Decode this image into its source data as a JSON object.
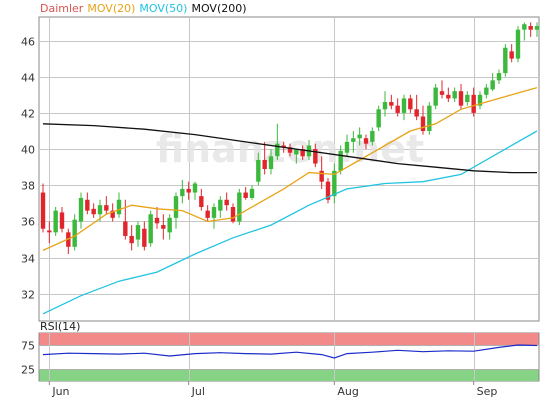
{
  "chart_data": [
    {
      "type": "candlestick",
      "legend": [
        {
          "label": "Daimler",
          "color": "#d9534f"
        },
        {
          "label": "MOV(20)",
          "color": "#e8a318"
        },
        {
          "label": "MOV(50)",
          "color": "#22c4e0"
        },
        {
          "label": "MOV(200)",
          "color": "#111111"
        }
      ],
      "y_ticks": [
        32,
        34,
        36,
        38,
        40,
        42,
        44,
        46
      ],
      "ylim": [
        30.5,
        47.3
      ],
      "x_labels": [
        {
          "label": "Jun",
          "i": 1
        },
        {
          "label": "Jul",
          "i": 23
        },
        {
          "label": "Aug",
          "i": 46
        },
        {
          "label": "Sep",
          "i": 68
        }
      ],
      "n_sessions": 79,
      "ohlc": [
        [
          37.6,
          38.1,
          35.4,
          35.6
        ],
        [
          35.5,
          36.0,
          34.8,
          35.4
        ],
        [
          35.4,
          36.8,
          35.2,
          36.6
        ],
        [
          36.5,
          36.8,
          35.4,
          35.6
        ],
        [
          35.4,
          35.6,
          34.2,
          34.6
        ],
        [
          34.6,
          36.4,
          34.4,
          36.1
        ],
        [
          36.0,
          37.6,
          35.6,
          37.3
        ],
        [
          37.2,
          37.6,
          36.4,
          36.6
        ],
        [
          36.7,
          37.0,
          36.2,
          36.4
        ],
        [
          36.4,
          37.2,
          36.0,
          36.9
        ],
        [
          36.9,
          37.4,
          36.4,
          36.6
        ],
        [
          36.6,
          37.0,
          36.0,
          36.2
        ],
        [
          36.4,
          37.6,
          36.2,
          37.2
        ],
        [
          36.0,
          37.2,
          35.0,
          35.2
        ],
        [
          35.2,
          35.8,
          34.4,
          34.8
        ],
        [
          35.0,
          36.0,
          34.6,
          35.8
        ],
        [
          35.6,
          36.0,
          34.4,
          34.6
        ],
        [
          34.8,
          36.6,
          34.6,
          36.4
        ],
        [
          36.2,
          36.8,
          35.6,
          35.9
        ],
        [
          35.8,
          36.4,
          35.0,
          35.6
        ],
        [
          35.4,
          36.4,
          35.0,
          36.2
        ],
        [
          36.2,
          37.6,
          35.6,
          37.4
        ],
        [
          37.4,
          38.3,
          37.0,
          37.8
        ],
        [
          37.8,
          38.2,
          37.2,
          37.6
        ],
        [
          37.6,
          38.2,
          37.2,
          38.1
        ],
        [
          37.4,
          37.8,
          36.6,
          36.8
        ],
        [
          36.6,
          36.9,
          36.0,
          36.2
        ],
        [
          36.2,
          37.0,
          35.6,
          36.8
        ],
        [
          36.6,
          37.4,
          36.2,
          37.2
        ],
        [
          37.2,
          37.6,
          36.6,
          36.9
        ],
        [
          36.8,
          37.0,
          35.9,
          36.0
        ],
        [
          36.0,
          37.8,
          35.8,
          37.6
        ],
        [
          37.6,
          37.9,
          37.2,
          37.3
        ],
        [
          37.3,
          38.0,
          37.2,
          37.8
        ],
        [
          38.2,
          39.8,
          38.0,
          39.4
        ],
        [
          39.4,
          40.4,
          38.6,
          38.9
        ],
        [
          38.9,
          40.0,
          38.6,
          39.6
        ],
        [
          39.6,
          41.4,
          39.4,
          40.3
        ],
        [
          40.2,
          40.4,
          39.8,
          40.1
        ],
        [
          40.1,
          40.3,
          39.6,
          39.8
        ],
        [
          39.7,
          40.0,
          39.2,
          40.0
        ],
        [
          40.0,
          40.2,
          39.4,
          39.6
        ],
        [
          39.6,
          40.5,
          39.4,
          40.2
        ],
        [
          40.0,
          40.3,
          39.0,
          39.2
        ],
        [
          38.8,
          39.6,
          37.8,
          38.2
        ],
        [
          38.2,
          38.4,
          37.0,
          37.2
        ],
        [
          37.4,
          39.2,
          37.0,
          38.8
        ],
        [
          38.8,
          40.2,
          38.6,
          39.9
        ],
        [
          39.8,
          40.8,
          39.6,
          40.4
        ],
        [
          40.4,
          41.0,
          39.8,
          40.6
        ],
        [
          40.6,
          41.2,
          40.2,
          40.8
        ],
        [
          40.6,
          40.8,
          40.0,
          40.3
        ],
        [
          40.4,
          41.2,
          40.2,
          41.0
        ],
        [
          41.2,
          42.4,
          41.0,
          42.2
        ],
        [
          42.2,
          43.2,
          41.8,
          42.6
        ],
        [
          42.6,
          43.0,
          42.2,
          42.4
        ],
        [
          42.4,
          42.8,
          41.8,
          42.0
        ],
        [
          42.0,
          43.0,
          41.6,
          42.8
        ],
        [
          42.8,
          43.0,
          42.0,
          42.2
        ],
        [
          42.2,
          43.0,
          41.6,
          41.8
        ],
        [
          41.8,
          42.4,
          40.8,
          41.0
        ],
        [
          41.0,
          42.6,
          40.8,
          42.4
        ],
        [
          42.4,
          43.6,
          42.2,
          43.4
        ],
        [
          43.2,
          43.8,
          42.8,
          43.0
        ],
        [
          43.0,
          43.4,
          42.6,
          42.8
        ],
        [
          42.8,
          43.4,
          42.6,
          43.2
        ],
        [
          43.2,
          43.6,
          42.2,
          42.4
        ],
        [
          42.6,
          43.2,
          42.4,
          43.0
        ],
        [
          43.0,
          43.4,
          41.8,
          42.0
        ],
        [
          42.4,
          43.2,
          42.2,
          43.0
        ],
        [
          43.0,
          43.6,
          42.8,
          43.4
        ],
        [
          43.3,
          44.2,
          43.2,
          43.8
        ],
        [
          43.8,
          44.4,
          43.6,
          44.2
        ],
        [
          44.2,
          45.8,
          44.0,
          45.6
        ],
        [
          45.4,
          45.8,
          44.8,
          45.0
        ],
        [
          45.0,
          46.8,
          44.8,
          46.6
        ],
        [
          46.6,
          47.0,
          46.0,
          46.9
        ],
        [
          46.8,
          47.0,
          46.2,
          46.6
        ],
        [
          46.6,
          47.0,
          46.2,
          46.8
        ]
      ],
      "mov20": [
        [
          0,
          34.4
        ],
        [
          5,
          35.2
        ],
        [
          10,
          36.4
        ],
        [
          14,
          36.9
        ],
        [
          18,
          36.7
        ],
        [
          22,
          36.6
        ],
        [
          26,
          36.0
        ],
        [
          30,
          36.2
        ],
        [
          34,
          37.0
        ],
        [
          38,
          37.8
        ],
        [
          42,
          38.7
        ],
        [
          46,
          38.6
        ],
        [
          50,
          39.4
        ],
        [
          54,
          40.2
        ],
        [
          58,
          41.0
        ],
        [
          62,
          41.4
        ],
        [
          66,
          42.2
        ],
        [
          70,
          42.6
        ],
        [
          74,
          43.0
        ],
        [
          78,
          43.4
        ]
      ],
      "mov50": [
        [
          0,
          30.9
        ],
        [
          6,
          31.9
        ],
        [
          12,
          32.7
        ],
        [
          18,
          33.2
        ],
        [
          24,
          34.2
        ],
        [
          30,
          35.1
        ],
        [
          36,
          35.8
        ],
        [
          42,
          36.9
        ],
        [
          48,
          37.8
        ],
        [
          54,
          38.1
        ],
        [
          60,
          38.2
        ],
        [
          66,
          38.6
        ],
        [
          72,
          39.8
        ],
        [
          78,
          41.0
        ]
      ],
      "mov200": [
        [
          0,
          41.4
        ],
        [
          8,
          41.3
        ],
        [
          16,
          41.1
        ],
        [
          24,
          40.8
        ],
        [
          32,
          40.4
        ],
        [
          40,
          40.0
        ],
        [
          48,
          39.6
        ],
        [
          56,
          39.2
        ],
        [
          62,
          39.0
        ],
        [
          68,
          38.8
        ],
        [
          74,
          38.7
        ],
        [
          78,
          38.7
        ]
      ]
    },
    {
      "type": "line",
      "title": "RSI(14)",
      "ylim": [
        0,
        100
      ],
      "y_ticks": [
        25,
        75
      ],
      "bands": [
        {
          "from": 75,
          "to": 100,
          "color": "#f28a8a"
        },
        {
          "from": 0,
          "to": 25,
          "color": "#86d386"
        }
      ],
      "values": [
        [
          0,
          55
        ],
        [
          4,
          58
        ],
        [
          8,
          57
        ],
        [
          12,
          56
        ],
        [
          16,
          58
        ],
        [
          20,
          52
        ],
        [
          24,
          57
        ],
        [
          28,
          59
        ],
        [
          32,
          57
        ],
        [
          36,
          56
        ],
        [
          40,
          60
        ],
        [
          44,
          55
        ],
        [
          46,
          48
        ],
        [
          48,
          57
        ],
        [
          52,
          60
        ],
        [
          56,
          64
        ],
        [
          60,
          61
        ],
        [
          64,
          63
        ],
        [
          68,
          62
        ],
        [
          72,
          70
        ],
        [
          75,
          75
        ],
        [
          78,
          74
        ]
      ]
    }
  ],
  "watermark": "finanzen.net"
}
